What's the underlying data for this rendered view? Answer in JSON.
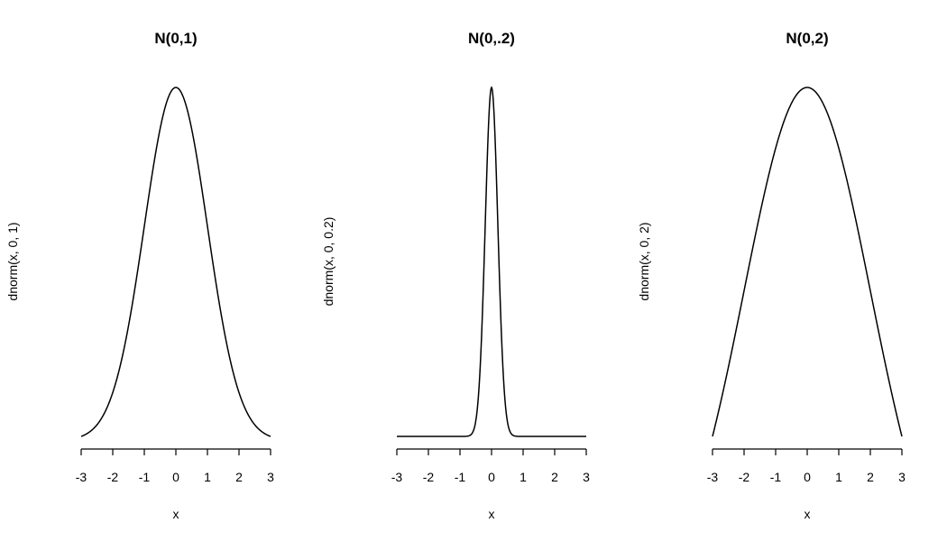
{
  "chart_data": [
    {
      "type": "line",
      "title": "N(0,1)",
      "xlabel": "x",
      "ylabel": "dnorm(x, 0, 1)",
      "function": "dnorm",
      "mean": 0,
      "sd": 1,
      "xlim": [
        -3,
        3
      ],
      "x_ticks": [
        -3,
        -2,
        -1,
        0,
        1,
        2,
        3
      ],
      "x_tick_labels": [
        "-3",
        "-2",
        "-1",
        "0",
        "1",
        "2",
        "3"
      ],
      "y_axis_drawn": false
    },
    {
      "type": "line",
      "title": "N(0,.2)",
      "xlabel": "x",
      "ylabel": "dnorm(x, 0, 0.2)",
      "function": "dnorm",
      "mean": 0,
      "sd": 0.2,
      "xlim": [
        -3,
        3
      ],
      "x_ticks": [
        -3,
        -2,
        -1,
        0,
        1,
        2,
        3
      ],
      "x_tick_labels": [
        "-3",
        "-2",
        "-1",
        "0",
        "1",
        "2",
        "3"
      ],
      "y_axis_drawn": false
    },
    {
      "type": "line",
      "title": "N(0,2)",
      "xlabel": "x",
      "ylabel": "dnorm(x, 0, 2)",
      "function": "dnorm",
      "mean": 0,
      "sd": 2,
      "xlim": [
        -3,
        3
      ],
      "x_ticks": [
        -3,
        -2,
        -1,
        0,
        1,
        2,
        3
      ],
      "x_tick_labels": [
        "-3",
        "-2",
        "-1",
        "0",
        "1",
        "2",
        "3"
      ],
      "y_axis_drawn": false
    }
  ]
}
